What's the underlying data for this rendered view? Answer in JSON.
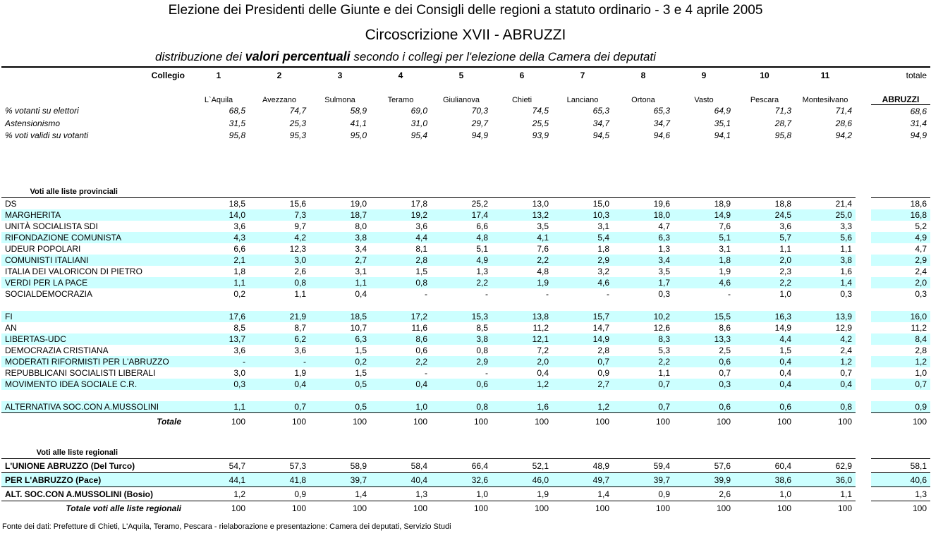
{
  "header": {
    "title": "Elezione dei Presidenti delle Giunte e dei Consigli delle regioni a statuto ordinario - 3 e 4 aprile 2005",
    "subtitle": "Circoscrizione XVII - ABRUZZI",
    "caption_pre": "distribuzione dei",
    "caption_emph": "valori percentuali",
    "caption_post": "secondo i collegi per l'elezione della Camera dei deputati"
  },
  "table": {
    "collegio_label": "Collegio",
    "numbers": [
      "1",
      "2",
      "3",
      "4",
      "5",
      "6",
      "7",
      "8",
      "9",
      "10",
      "11"
    ],
    "total_label": "totale",
    "names": [
      "L`Aquila",
      "Avezzano",
      "Sulmona",
      "Teramo",
      "Giulianova",
      "Chieti",
      "Lanciano",
      "Ortona",
      "Vasto",
      "Pescara",
      "Montesilvano"
    ],
    "total_name": "ABRUZZI",
    "stats": [
      {
        "label": "% votanti su elettori",
        "values": [
          "68,5",
          "74,7",
          "58,9",
          "69,0",
          "70,3",
          "74,5",
          "65,3",
          "65,3",
          "64,9",
          "71,3",
          "71,4"
        ],
        "total": "68,6"
      },
      {
        "label": "Astensionismo",
        "values": [
          "31,5",
          "25,3",
          "41,1",
          "31,0",
          "29,7",
          "25,5",
          "34,7",
          "34,7",
          "35,1",
          "28,7",
          "28,6"
        ],
        "total": "31,4"
      },
      {
        "label": "% voti validi su votanti",
        "values": [
          "95,8",
          "95,3",
          "95,0",
          "95,4",
          "94,9",
          "93,9",
          "94,5",
          "94,6",
          "94,1",
          "95,8",
          "94,2"
        ],
        "total": "94,9"
      }
    ],
    "provincial": {
      "title": "Voti alle liste provinciali",
      "groups": [
        [
          {
            "label": "DS",
            "values": [
              "18,5",
              "15,6",
              "19,0",
              "17,8",
              "25,2",
              "13,0",
              "15,0",
              "19,6",
              "18,9",
              "18,8",
              "21,4"
            ],
            "total": "18,6"
          },
          {
            "label": "MARGHERITA",
            "values": [
              "14,0",
              "7,3",
              "18,7",
              "19,2",
              "17,4",
              "13,2",
              "10,3",
              "18,0",
              "14,9",
              "24,5",
              "25,0"
            ],
            "total": "16,8"
          },
          {
            "label": "UNITÀ SOCIALISTA SDI",
            "values": [
              "3,6",
              "9,7",
              "8,0",
              "3,6",
              "6,6",
              "3,5",
              "3,1",
              "4,7",
              "7,6",
              "3,6",
              "3,3"
            ],
            "total": "5,2"
          },
          {
            "label": "RIFONDAZIONE COMUNISTA",
            "values": [
              "4,3",
              "4,2",
              "3,8",
              "4,4",
              "4,8",
              "4,1",
              "5,4",
              "6,3",
              "5,1",
              "5,7",
              "5,6"
            ],
            "total": "4,9"
          },
          {
            "label": "UDEUR POPOLARI",
            "values": [
              "6,6",
              "12,3",
              "3,4",
              "8,1",
              "5,1",
              "7,6",
              "1,8",
              "1,3",
              "3,1",
              "1,1",
              "1,1"
            ],
            "total": "4,7"
          },
          {
            "label": "COMUNISTI ITALIANI",
            "values": [
              "2,1",
              "3,0",
              "2,7",
              "2,8",
              "4,9",
              "2,2",
              "2,9",
              "3,4",
              "1,8",
              "2,0",
              "3,8"
            ],
            "total": "2,9"
          },
          {
            "label": "ITALIA DEI VALORICON DI PIETRO",
            "values": [
              "1,8",
              "2,6",
              "3,1",
              "1,5",
              "1,3",
              "4,8",
              "3,2",
              "3,5",
              "1,9",
              "2,3",
              "1,6"
            ],
            "total": "2,4"
          },
          {
            "label": "VERDI PER LA PACE",
            "values": [
              "1,1",
              "0,8",
              "1,1",
              "0,8",
              "2,2",
              "1,9",
              "4,6",
              "1,7",
              "4,6",
              "2,2",
              "1,4"
            ],
            "total": "2,0"
          },
          {
            "label": "SOCIALDEMOCRAZIA",
            "values": [
              "0,2",
              "1,1",
              "0,4",
              "-",
              "-",
              "-",
              "-",
              "0,3",
              "-",
              "1,0",
              "0,3"
            ],
            "total": "0,3"
          }
        ],
        [
          {
            "label": "FI",
            "values": [
              "17,6",
              "21,9",
              "18,5",
              "17,2",
              "15,3",
              "13,8",
              "15,7",
              "10,2",
              "15,5",
              "16,3",
              "13,9"
            ],
            "total": "16,0"
          },
          {
            "label": "AN",
            "values": [
              "8,5",
              "8,7",
              "10,7",
              "11,6",
              "8,5",
              "11,2",
              "14,7",
              "12,6",
              "8,6",
              "14,9",
              "12,9"
            ],
            "total": "11,2"
          },
          {
            "label": "LIBERTAS-UDC",
            "values": [
              "13,7",
              "6,2",
              "6,3",
              "8,6",
              "3,8",
              "12,1",
              "14,9",
              "8,3",
              "13,3",
              "4,4",
              "4,2"
            ],
            "total": "8,4"
          },
          {
            "label": "DEMOCRAZIA CRISTIANA",
            "values": [
              "3,6",
              "3,6",
              "1,5",
              "0,6",
              "0,8",
              "7,2",
              "2,8",
              "5,3",
              "2,5",
              "1,5",
              "2,4"
            ],
            "total": "2,8"
          },
          {
            "label": "MODERATI RIFORMISTI PER L'ABRUZZO",
            "values": [
              "-",
              "-",
              "0,2",
              "2,2",
              "2,9",
              "2,0",
              "0,7",
              "2,2",
              "0,6",
              "0,4",
              "1,2"
            ],
            "total": "1,2"
          },
          {
            "label": "REPUBBLICANI SOCIALISTI LIBERALI",
            "values": [
              "3,0",
              "1,9",
              "1,5",
              "-",
              "-",
              "0,4",
              "0,9",
              "1,1",
              "0,7",
              "0,4",
              "0,7"
            ],
            "total": "1,0"
          },
          {
            "label": "MOVIMENTO IDEA SOCIALE C.R.",
            "values": [
              "0,3",
              "0,4",
              "0,5",
              "0,4",
              "0,6",
              "1,2",
              "2,7",
              "0,7",
              "0,3",
              "0,4",
              "0,4"
            ],
            "total": "0,7"
          }
        ],
        [
          {
            "label": "ALTERNATIVA SOC.CON A.MUSSOLINI",
            "values": [
              "1,1",
              "0,7",
              "0,5",
              "1,0",
              "0,8",
              "1,6",
              "1,2",
              "0,7",
              "0,6",
              "0,6",
              "0,8"
            ],
            "total": "0,9"
          }
        ]
      ],
      "total": {
        "label": "Totale",
        "values": [
          "100",
          "100",
          "100",
          "100",
          "100",
          "100",
          "100",
          "100",
          "100",
          "100",
          "100"
        ],
        "total": "100"
      }
    },
    "regional": {
      "title": "Voti alle liste regionali",
      "rows": [
        {
          "label": "L'UNIONE ABRUZZO (Del Turco)",
          "values": [
            "54,7",
            "57,3",
            "58,9",
            "58,4",
            "66,4",
            "52,1",
            "48,9",
            "59,4",
            "57,6",
            "60,4",
            "62,9"
          ],
          "total": "58,1"
        },
        {
          "label": "PER L'ABRUZZO (Pace)",
          "values": [
            "44,1",
            "41,8",
            "39,7",
            "40,4",
            "32,6",
            "46,0",
            "49,7",
            "39,7",
            "39,9",
            "38,6",
            "36,0"
          ],
          "total": "40,6"
        },
        {
          "label": "ALT. SOC.CON A.MUSSOLINI (Bosio)",
          "values": [
            "1,2",
            "0,9",
            "1,4",
            "1,3",
            "1,0",
            "1,9",
            "1,4",
            "0,9",
            "2,6",
            "1,0",
            "1,1"
          ],
          "total": "1,3"
        }
      ],
      "total": {
        "label": "Totale voti alle liste regionali",
        "values": [
          "100",
          "100",
          "100",
          "100",
          "100",
          "100",
          "100",
          "100",
          "100",
          "100",
          "100"
        ],
        "total": "100"
      }
    }
  },
  "footer": "Fonte dei dati: Prefetture di Chieti, L'Aquila, Teramo, Pescara - rielaborazione e presentazione: Camera dei deputati, Servizio Studi"
}
